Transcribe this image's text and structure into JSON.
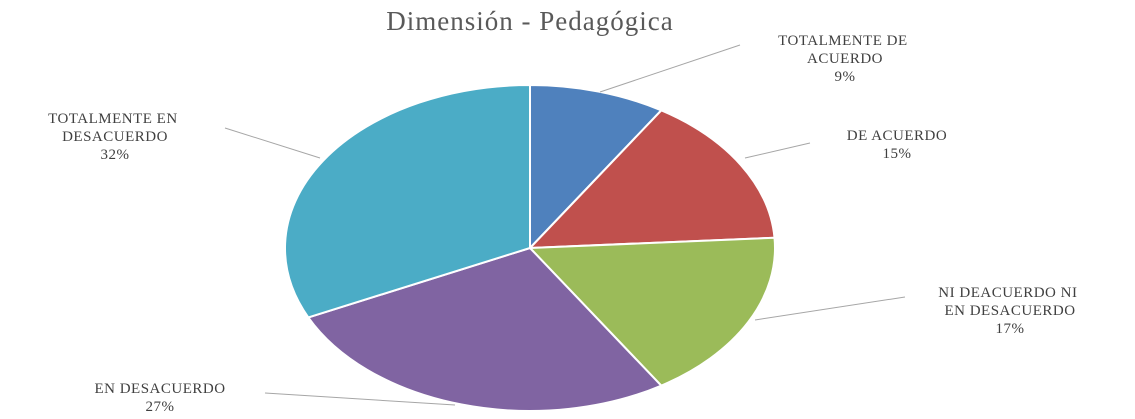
{
  "chart_data": {
    "type": "pie",
    "title": "Dimensión  - Pedagógica",
    "categories": [
      "TOTALMENTE DE ACUERDO",
      "DE ACUERDO",
      "NI DEACUERDO NI EN DESACUERDO",
      "EN DESACUERDO",
      "TOTALMENTE EN DESACUERDO"
    ],
    "values": [
      9,
      15,
      17,
      27,
      32
    ],
    "value_labels": [
      "9%",
      "15%",
      "17%",
      "27%",
      "32%"
    ],
    "colors": [
      "#4f81bd",
      "#c0504d",
      "#9bbb59",
      "#8064a2",
      "#4bacc6"
    ]
  }
}
